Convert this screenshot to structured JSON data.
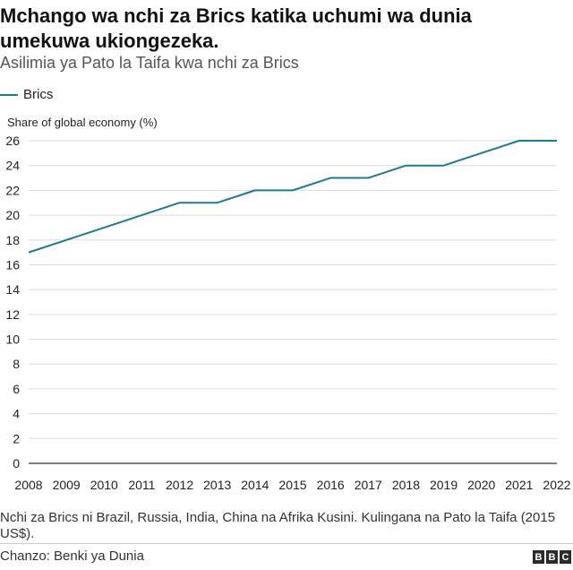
{
  "header": {
    "title": "Mchango wa nchi za Brics katika uchumi wa dunia umekuwa ukiongezeka.",
    "subtitle": "Asilimia ya Pato la Taifa kwa nchi za Brics"
  },
  "footer": {
    "note": "Nchi za Brics ni Brazil, Russia, India, China na Afrika Kusini. Kulingana na Pato la Taifa (2015 US$).",
    "source": "Chanzo: Benki ya Dunia",
    "logo_letters": [
      "B",
      "B",
      "C"
    ]
  },
  "colors": {
    "series": "#1f7a93",
    "grid": "#dddddd",
    "axis": "#333333"
  },
  "chart_data": {
    "type": "line",
    "title": "Mchango wa nchi za Brics katika uchumi wa dunia umekuwa ukiongezeka.",
    "subtitle": "Asilimia ya Pato la Taifa kwa nchi za Brics",
    "ylabel": "Share of global economy (%)",
    "xlabel": "",
    "x": [
      "2008",
      "2009",
      "2010",
      "2011",
      "2012",
      "2013",
      "2014",
      "2015",
      "2016",
      "2017",
      "2018",
      "2019",
      "2020",
      "2021",
      "2022"
    ],
    "series": [
      {
        "name": "Brics",
        "values": [
          17,
          18,
          19,
          20,
          21,
          21,
          22,
          22,
          23,
          23,
          24,
          24,
          25,
          26,
          26
        ]
      }
    ],
    "yticks": [
      0,
      2,
      4,
      6,
      8,
      10,
      12,
      14,
      16,
      18,
      20,
      22,
      24,
      26
    ],
    "ylim": [
      0,
      26
    ],
    "grid": true,
    "legend": "top-left"
  }
}
